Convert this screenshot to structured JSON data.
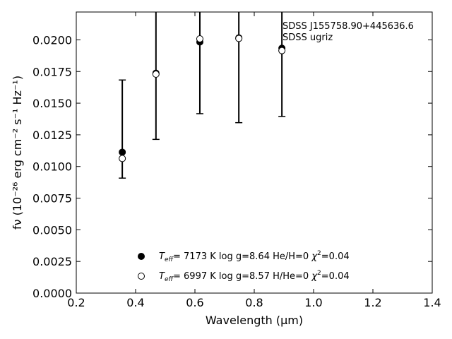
{
  "chart_data": {
    "type": "scatter",
    "xlabel": "Wavelength (μm)",
    "ylabel": "fν (10⁻²⁶ erg cm⁻² s⁻¹ Hz⁻¹)",
    "xlim": [
      0.2,
      1.4
    ],
    "ylim": [
      0.0,
      0.0222
    ],
    "xticks": [
      "0.2",
      "0.4",
      "0.6",
      "0.8",
      "1.0",
      "1.2",
      "1.4"
    ],
    "yticks": [
      "0.0000",
      "0.0025",
      "0.0050",
      "0.0075",
      "0.0100",
      "0.0125",
      "0.0150",
      "0.0175",
      "0.0200"
    ],
    "grid": false,
    "annotations": [
      "SDSS J155758.90+445636.6",
      "SDSS ugriz"
    ],
    "legend_position": "lower-center",
    "observed": {
      "x": [
        0.3551,
        0.4686,
        0.6166,
        0.748,
        0.8932
      ],
      "y": [
        0.01113,
        0.01742,
        0.01983,
        0.02016,
        0.01934
      ],
      "y_lower": [
        0.00908,
        0.01214,
        0.01417,
        0.01346,
        0.01395
      ],
      "y_upper": [
        0.01683,
        0.0229,
        0.0229,
        0.0229,
        0.0229
      ]
    },
    "series": [
      {
        "marker": "filled-circle",
        "x": [
          0.3551,
          0.4686,
          0.6166,
          0.748,
          0.8932
        ],
        "y": [
          0.01113,
          0.01737,
          0.01983,
          0.02016,
          0.01934
        ],
        "legend": {
          "teff": "7173 K",
          "logg": "log g=8.64",
          "comp": "He/H=0",
          "chi2": "=0.04"
        }
      },
      {
        "marker": "open-circle",
        "x": [
          0.3551,
          0.4686,
          0.6166,
          0.748,
          0.8932
        ],
        "y": [
          0.01063,
          0.01729,
          0.02008,
          0.02011,
          0.01915
        ],
        "legend": {
          "teff": "6997 K",
          "logg": "log g=8.57",
          "comp": "H/He=0",
          "chi2": "=0.04"
        }
      }
    ]
  }
}
